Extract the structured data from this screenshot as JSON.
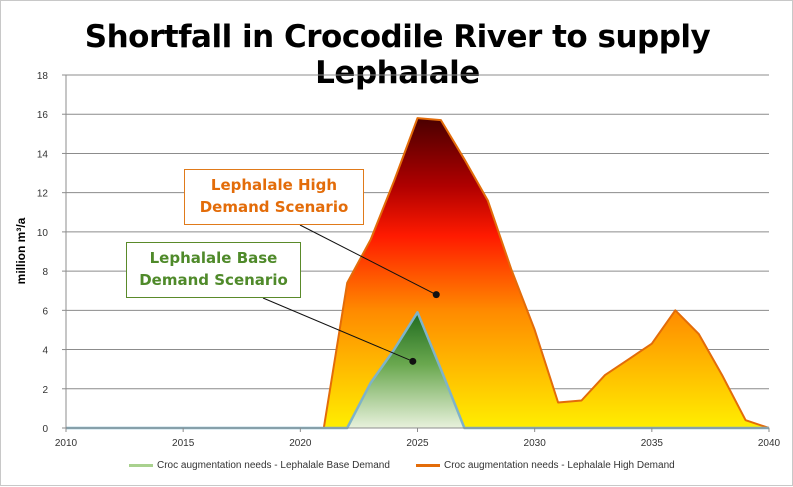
{
  "chart_data": {
    "type": "area",
    "title": "Shortfall in Crocodile River to supply Lephalale",
    "ylabel": "million m³/a",
    "xlabel": "",
    "xlim": [
      2010,
      2040
    ],
    "ylim": [
      0,
      18
    ],
    "xticks": [
      2010,
      2015,
      2020,
      2025,
      2030,
      2035,
      2040
    ],
    "yticks": [
      0,
      2,
      4,
      6,
      8,
      10,
      12,
      14,
      16,
      18
    ],
    "grid": true,
    "legend_position": "bottom",
    "series": [
      {
        "name": "Croc augmentation needs - Lephalale High Demand",
        "color": "#e36c09",
        "x": [
          2010,
          2021,
          2022,
          2023,
          2024,
          2025,
          2026,
          2027,
          2028,
          2029,
          2030,
          2031,
          2032,
          2033,
          2034,
          2035,
          2036,
          2037,
          2038,
          2039,
          2040
        ],
        "values": [
          0,
          0,
          7.4,
          9.6,
          12.6,
          15.8,
          15.7,
          13.7,
          11.6,
          8.1,
          5.0,
          1.3,
          1.4,
          2.7,
          3.5,
          4.3,
          6.0,
          4.8,
          2.7,
          0.4,
          0
        ]
      },
      {
        "name": "Croc augmentation needs - Lephalale Base Demand",
        "color": "#a9d18e",
        "x": [
          2010,
          2022,
          2023,
          2024,
          2025,
          2026,
          2027,
          2040
        ],
        "values": [
          0,
          0,
          2.3,
          4.0,
          5.9,
          3.0,
          0,
          0
        ]
      }
    ],
    "annotations": [
      {
        "text_line1": "Lephalale High",
        "text_line2": "Demand Scenario",
        "points_to": {
          "x": 2025.8,
          "y": 6.8
        }
      },
      {
        "text_line1": "Lephalale Base",
        "text_line2": "Demand Scenario",
        "points_to": {
          "x": 2024.8,
          "y": 3.4
        }
      }
    ]
  }
}
